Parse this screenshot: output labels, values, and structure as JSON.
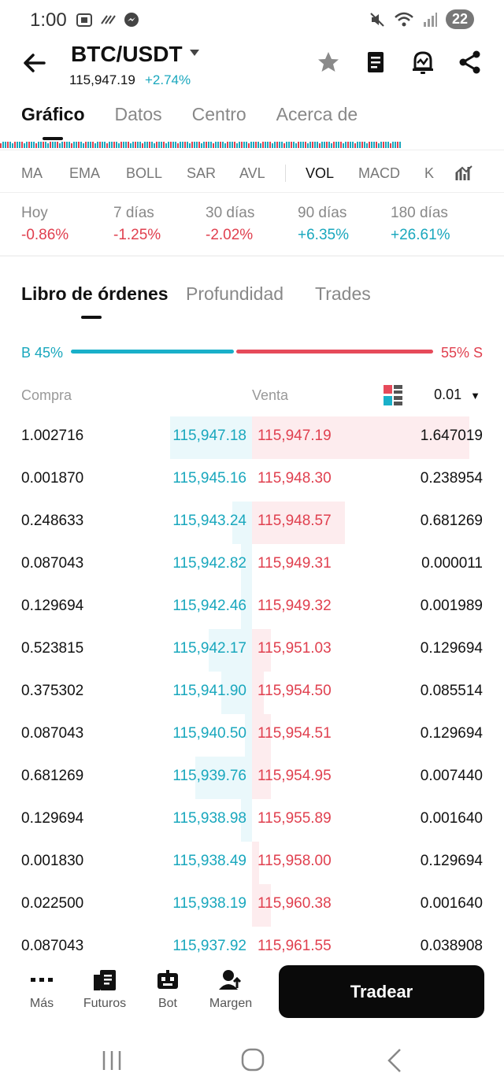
{
  "status_bar": {
    "time": "1:00",
    "battery": "22"
  },
  "header": {
    "pair": "BTC/USDT",
    "price": "115,947.19",
    "change": "+2.74%"
  },
  "tabs": [
    "Gráfico",
    "Datos",
    "Centro",
    "Acerca de"
  ],
  "indicators": [
    "MA",
    "EMA",
    "BOLL",
    "SAR",
    "AVL",
    "VOL",
    "MACD",
    "K"
  ],
  "periods": [
    {
      "label": "Hoy",
      "value": "-0.86%",
      "trend": "down"
    },
    {
      "label": "7 días",
      "value": "-1.25%",
      "trend": "down"
    },
    {
      "label": "30 días",
      "value": "-2.02%",
      "trend": "down"
    },
    {
      "label": "90 días",
      "value": "+6.35%",
      "trend": "up"
    },
    {
      "label": "180 días",
      "value": "+26.61%",
      "trend": "up"
    }
  ],
  "orderbook_tabs": [
    "Libro de órdenes",
    "Profundidad",
    "Trades"
  ],
  "ratio": {
    "buy_label": "B 45%",
    "sell_label": "55% S",
    "buy_fraction": 0.45
  },
  "columns": {
    "buy": "Compra",
    "sell": "Venta",
    "precision": "0.01"
  },
  "rows": [
    {
      "bq": "1.002716",
      "bp": "115,947.18",
      "sp": "115,947.19",
      "sq": "1.647019",
      "bd": 0.58,
      "sd": 0.94
    },
    {
      "bq": "0.001870",
      "bp": "115,945.16",
      "sp": "115,948.30",
      "sq": "0.238954",
      "bd": 0.0,
      "sd": 0.0
    },
    {
      "bq": "0.248633",
      "bp": "115,943.24",
      "sp": "115,948.57",
      "sq": "0.681269",
      "bd": 0.14,
      "sd": 0.4
    },
    {
      "bq": "0.087043",
      "bp": "115,942.82",
      "sp": "115,949.31",
      "sq": "0.000011",
      "bd": 0.08,
      "sd": 0.0
    },
    {
      "bq": "0.129694",
      "bp": "115,942.46",
      "sp": "115,949.32",
      "sq": "0.001989",
      "bd": 0.08,
      "sd": 0.0
    },
    {
      "bq": "0.523815",
      "bp": "115,942.17",
      "sp": "115,951.03",
      "sq": "0.129694",
      "bd": 0.31,
      "sd": 0.08
    },
    {
      "bq": "0.375302",
      "bp": "115,941.90",
      "sp": "115,954.50",
      "sq": "0.085514",
      "bd": 0.22,
      "sd": 0.05
    },
    {
      "bq": "0.087043",
      "bp": "115,940.50",
      "sp": "115,954.51",
      "sq": "0.129694",
      "bd": 0.05,
      "sd": 0.08
    },
    {
      "bq": "0.681269",
      "bp": "115,939.76",
      "sp": "115,954.95",
      "sq": "0.007440",
      "bd": 0.4,
      "sd": 0.08
    },
    {
      "bq": "0.129694",
      "bp": "115,938.98",
      "sp": "115,955.89",
      "sq": "0.001640",
      "bd": 0.08,
      "sd": 0.0
    },
    {
      "bq": "0.001830",
      "bp": "115,938.49",
      "sp": "115,958.00",
      "sq": "0.129694",
      "bd": 0.0,
      "sd": 0.03
    },
    {
      "bq": "0.022500",
      "bp": "115,938.19",
      "sp": "115,960.38",
      "sq": "0.001640",
      "bd": 0.0,
      "sd": 0.08
    },
    {
      "bq": "0.087043",
      "bp": "115,937.92",
      "sp": "115,961.55",
      "sq": "0.038908",
      "bd": 0.0,
      "sd": 0.0
    }
  ],
  "bottom_nav": [
    {
      "label": "Más",
      "icon": "more-dots-icon"
    },
    {
      "label": "Futuros",
      "icon": "futures-icon"
    },
    {
      "label": "Bot",
      "icon": "bot-icon"
    },
    {
      "label": "Margen",
      "icon": "margin-icon"
    }
  ],
  "trade_button": "Tradear",
  "colors": {
    "buy": "#19a7bd",
    "sell": "#e0404f"
  }
}
